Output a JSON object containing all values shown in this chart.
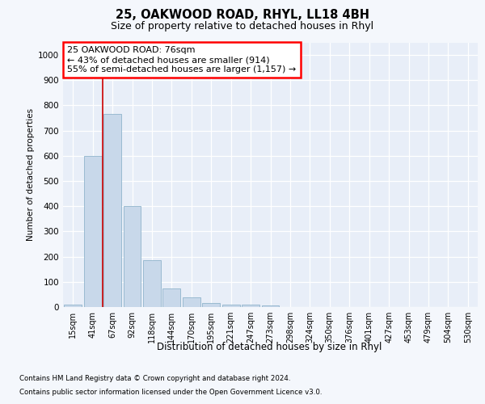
{
  "title1": "25, OAKWOOD ROAD, RHYL, LL18 4BH",
  "title2": "Size of property relative to detached houses in Rhyl",
  "xlabel": "Distribution of detached houses by size in Rhyl",
  "ylabel": "Number of detached properties",
  "categories": [
    "15sqm",
    "41sqm",
    "67sqm",
    "92sqm",
    "118sqm",
    "144sqm",
    "170sqm",
    "195sqm",
    "221sqm",
    "247sqm",
    "273sqm",
    "298sqm",
    "324sqm",
    "350sqm",
    "376sqm",
    "401sqm",
    "427sqm",
    "453sqm",
    "479sqm",
    "504sqm",
    "530sqm"
  ],
  "values": [
    10,
    600,
    765,
    400,
    185,
    75,
    38,
    15,
    10,
    10,
    5,
    0,
    0,
    0,
    0,
    0,
    0,
    0,
    0,
    0,
    0
  ],
  "bar_color": "#c8d8ea",
  "bar_edge_color": "#90b4cc",
  "vline_color": "#cc0000",
  "vline_x": 1.5,
  "annotation_text": "25 OAKWOOD ROAD: 76sqm\n← 43% of detached houses are smaller (914)\n55% of semi-detached houses are larger (1,157) →",
  "ylim_max": 1050,
  "yticks": [
    0,
    100,
    200,
    300,
    400,
    500,
    600,
    700,
    800,
    900,
    1000
  ],
  "bg_color": "#f4f7fc",
  "plot_bg_color": "#e8eef8",
  "footer1": "Contains HM Land Registry data © Crown copyright and database right 2024.",
  "footer2": "Contains public sector information licensed under the Open Government Licence v3.0."
}
